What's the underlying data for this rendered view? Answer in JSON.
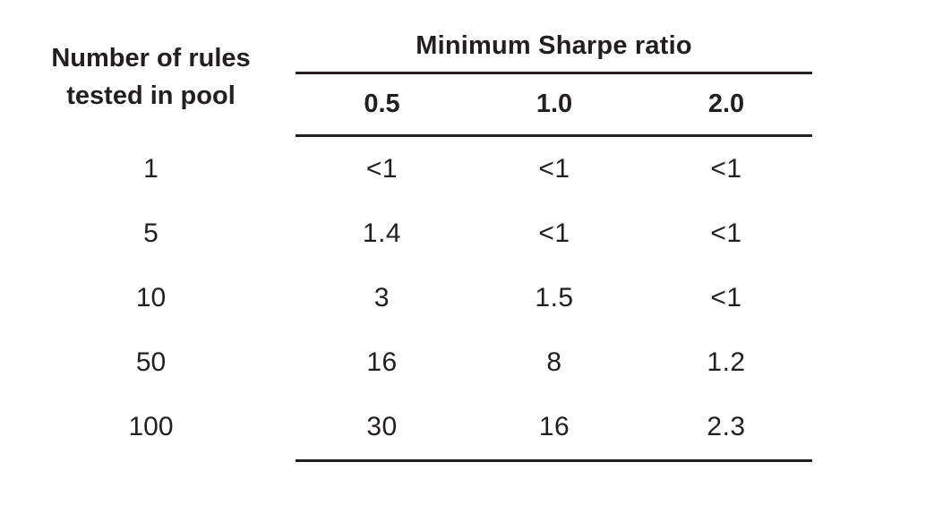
{
  "colors": {
    "text": "#231f20",
    "rule": "#231f20",
    "background": "#ffffff"
  },
  "table": {
    "spanner_title": "Minimum Sharpe ratio",
    "stub_header_line1": "Number of rules",
    "stub_header_line2": "tested in pool",
    "columns": [
      "0.5",
      "1.0",
      "2.0"
    ],
    "rows": [
      {
        "label": "1",
        "values": [
          "<1",
          "<1",
          "<1"
        ]
      },
      {
        "label": "5",
        "values": [
          "1.4",
          "<1",
          "<1"
        ]
      },
      {
        "label": "10",
        "values": [
          "3",
          "1.5",
          "<1"
        ]
      },
      {
        "label": "50",
        "values": [
          "16",
          "8",
          "1.2"
        ]
      },
      {
        "label": "100",
        "values": [
          "30",
          "16",
          "2.3"
        ]
      }
    ]
  },
  "chart_data": {
    "type": "table",
    "title": "Minimum Sharpe ratio",
    "row_header": "Number of rules tested in pool",
    "columns": [
      "0.5",
      "1.0",
      "2.0"
    ],
    "rows": [
      {
        "number_of_rules": "1",
        "sharpe_0_5": "<1",
        "sharpe_1_0": "<1",
        "sharpe_2_0": "<1"
      },
      {
        "number_of_rules": "5",
        "sharpe_0_5": "1.4",
        "sharpe_1_0": "<1",
        "sharpe_2_0": "<1"
      },
      {
        "number_of_rules": "10",
        "sharpe_0_5": "3",
        "sharpe_1_0": "1.5",
        "sharpe_2_0": "<1"
      },
      {
        "number_of_rules": "50",
        "sharpe_0_5": "16",
        "sharpe_1_0": "8",
        "sharpe_2_0": "1.2"
      },
      {
        "number_of_rules": "100",
        "sharpe_0_5": "30",
        "sharpe_1_0": "16",
        "sharpe_2_0": "2.3"
      }
    ]
  }
}
